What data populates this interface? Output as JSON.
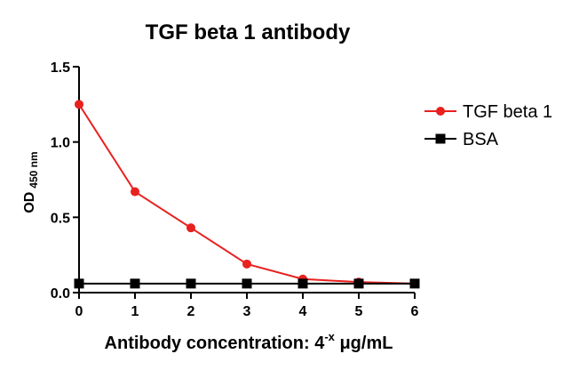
{
  "chart_data": {
    "type": "line",
    "title": "TGF beta 1 antibody",
    "xlabel": {
      "main": "Antibody concentration: 4",
      "superscript": "-x",
      "unit": " μg/mL"
    },
    "ylabel": {
      "main": "OD",
      "subscript": "450 nm"
    },
    "x": [
      0,
      1,
      2,
      3,
      4,
      5,
      6
    ],
    "xticks": [
      "0",
      "1",
      "2",
      "3",
      "4",
      "5",
      "6"
    ],
    "yticks": [
      "0.0",
      "0.5",
      "1.0",
      "1.5"
    ],
    "xlim": [
      0,
      6
    ],
    "ylim": [
      0,
      1.5
    ],
    "grid": false,
    "legend_position": "right",
    "series": [
      {
        "name": "TGF beta 1",
        "values": [
          1.25,
          0.67,
          0.43,
          0.19,
          0.09,
          0.07,
          0.06
        ],
        "color": "#e8211f",
        "marker": "circle"
      },
      {
        "name": "BSA",
        "values": [
          0.06,
          0.06,
          0.06,
          0.06,
          0.06,
          0.06,
          0.06
        ],
        "color": "#000000",
        "marker": "square"
      }
    ]
  }
}
